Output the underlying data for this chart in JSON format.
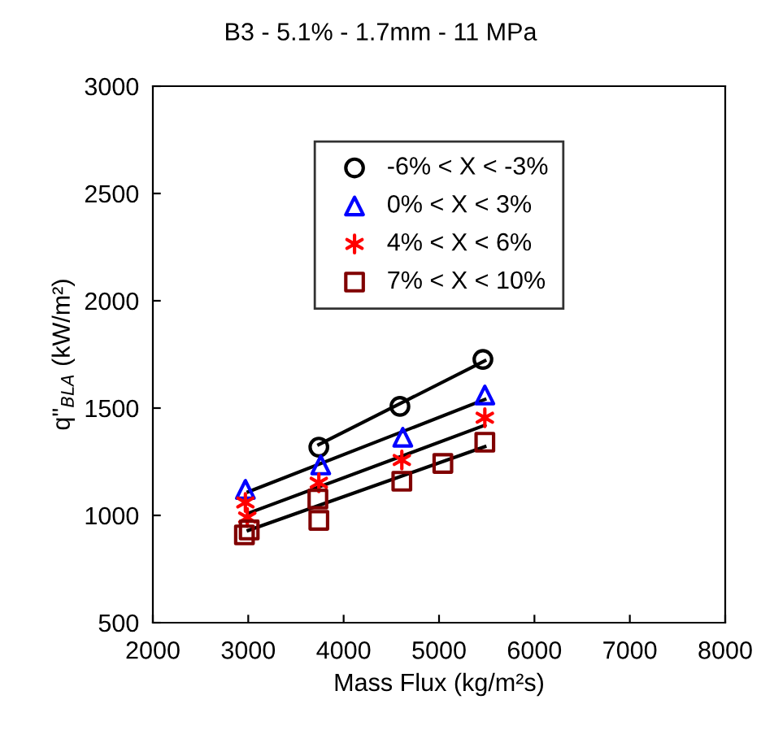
{
  "chart_data": {
    "type": "scatter",
    "title": "B3 - 5.1% - 1.7mm - 11 MPa",
    "xlabel": "Mass Flux (kg/m²s)",
    "ylabel": "q\"$_{BLA}$ (kW/m²)",
    "xlim": [
      2000,
      8000
    ],
    "xticks": [
      2000,
      3000,
      4000,
      5000,
      6000,
      7000,
      8000
    ],
    "ylim": [
      500,
      3000
    ],
    "yticks": [
      500,
      1000,
      1500,
      2000,
      2500,
      3000
    ],
    "grid": false,
    "legend": "top",
    "series": [
      {
        "name": "-6% < X < -3%",
        "color": "#000000",
        "marker": "circle",
        "x": [
          3740,
          4590,
          5460
        ],
        "values": [
          1318,
          1508,
          1727
        ]
      },
      {
        "name": "0% < X < 3%",
        "color": "#0000ff",
        "marker": "triangle",
        "x": [
          2970,
          3760,
          4620,
          5480
        ],
        "values": [
          1121,
          1235,
          1364,
          1561
        ]
      },
      {
        "name": "4% < X < 6%",
        "color": "#ff0000",
        "marker": "cross",
        "x": [
          2970,
          2990,
          3740,
          4610,
          5480
        ],
        "values": [
          1060,
          990,
          1152,
          1258,
          1455
        ]
      },
      {
        "name": "7% < X < 10%",
        "color": "#800000",
        "marker": "square",
        "x": [
          2960,
          3010,
          3730,
          3740,
          4610,
          5040,
          5480
        ],
        "values": [
          909,
          932,
          1076,
          977,
          1159,
          1242,
          1341
        ]
      },
      {
        "type": "line",
        "color": "#000000",
        "marker": "none",
        "x": [
          3740,
          5480
        ],
        "values": [
          1330,
          1720
        ]
      },
      {
        "type": "line",
        "color": "#000000",
        "marker": "none",
        "x": [
          3000,
          5480
        ],
        "values": [
          1110,
          1540
        ]
      },
      {
        "type": "line",
        "color": "#000000",
        "marker": "none",
        "x": [
          3000,
          5480
        ],
        "values": [
          1010,
          1420
        ]
      },
      {
        "type": "line",
        "color": "#000000",
        "marker": "none",
        "x": [
          3000,
          5480
        ],
        "values": [
          930,
          1320
        ]
      }
    ]
  }
}
